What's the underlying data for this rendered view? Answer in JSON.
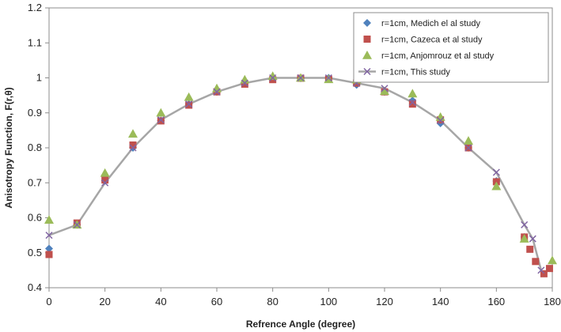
{
  "chart_data": {
    "type": "scatter",
    "title": "",
    "xlabel": "Refrence Angle (degree)",
    "ylabel": "Anisotropy Function, F(r,θ)",
    "xlim": [
      0,
      180
    ],
    "ylim": [
      0.4,
      1.2
    ],
    "x_ticks": [
      "0",
      "20",
      "40",
      "60",
      "80",
      "100",
      "120",
      "140",
      "160",
      "180"
    ],
    "y_ticks": [
      "0.4",
      "0.5",
      "0.6",
      "0.7",
      "0.8",
      "0.9",
      "1",
      "1.1",
      "1.2"
    ],
    "grid": false,
    "legend_position": "top-right",
    "series": [
      {
        "name": "r=1cm, Medich el al study",
        "marker": "diamond",
        "color": "#4f81bd",
        "x": [
          0,
          10,
          20,
          30,
          40,
          50,
          60,
          70,
          80,
          90,
          100,
          110,
          120,
          130,
          140,
          150,
          160,
          170
        ],
        "y": [
          0.512,
          0.58,
          0.706,
          0.8,
          0.878,
          0.925,
          0.96,
          0.985,
          0.998,
          0.999,
          1.0,
          0.98,
          0.96,
          0.935,
          0.87,
          0.8,
          0.705,
          0.545
        ]
      },
      {
        "name": "r=1cm, Cazeca et al  study",
        "marker": "square",
        "color": "#c0504d",
        "x": [
          0,
          10,
          20,
          30,
          40,
          50,
          60,
          70,
          80,
          90,
          100,
          110,
          120,
          130,
          140,
          150,
          160,
          170,
          172,
          174,
          177,
          179
        ],
        "y": [
          0.495,
          0.585,
          0.708,
          0.808,
          0.877,
          0.922,
          0.96,
          0.982,
          0.995,
          0.999,
          0.996,
          0.985,
          0.96,
          0.925,
          0.88,
          0.8,
          0.703,
          0.545,
          0.51,
          0.475,
          0.44,
          0.455
        ]
      },
      {
        "name": "r=1cm, Anjomrouz et al study",
        "marker": "triangle",
        "color": "#9bbb59",
        "x": [
          0,
          10,
          20,
          30,
          40,
          50,
          60,
          70,
          80,
          90,
          100,
          110,
          120,
          130,
          140,
          150,
          160,
          170,
          180
        ],
        "y": [
          0.594,
          0.58,
          0.728,
          0.84,
          0.9,
          0.945,
          0.97,
          0.995,
          1.005,
          1.0,
          0.996,
          0.995,
          0.962,
          0.955,
          0.888,
          0.82,
          0.69,
          0.54,
          0.478
        ]
      },
      {
        "name": "r=1cm, This study",
        "marker": "x",
        "color": "#8064a2",
        "line_color": "#a6a6a6",
        "x": [
          0,
          10,
          20,
          30,
          40,
          50,
          60,
          70,
          80,
          90,
          100,
          110,
          120,
          130,
          140,
          150,
          160,
          170,
          173,
          176
        ],
        "y": [
          0.55,
          0.58,
          0.7,
          0.8,
          0.88,
          0.925,
          0.96,
          0.985,
          1.0,
          1.0,
          1.0,
          0.985,
          0.97,
          0.93,
          0.878,
          0.8,
          0.73,
          0.58,
          0.54,
          0.45
        ]
      }
    ]
  }
}
